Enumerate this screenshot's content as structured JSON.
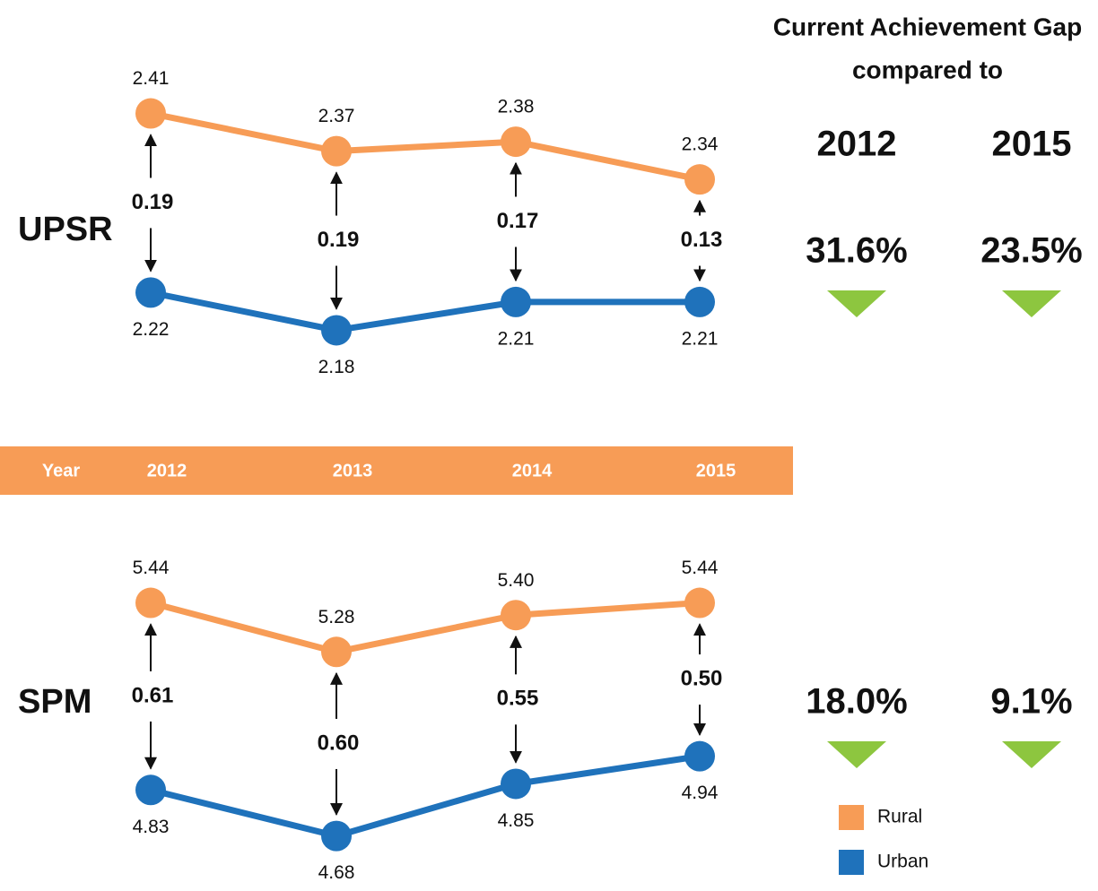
{
  "chart_data": [
    {
      "type": "line",
      "title": "UPSR",
      "ylim": [
        2.15,
        2.44
      ],
      "series": [
        {
          "name": "Rural",
          "color": "#f79c56",
          "values": [
            2.41,
            2.37,
            2.38,
            2.34
          ],
          "value_labels": [
            "2.41",
            "2.37",
            "2.38",
            "2.34"
          ]
        },
        {
          "name": "Urban",
          "color": "#1f72bb",
          "values": [
            2.22,
            2.18,
            2.21,
            2.21
          ],
          "value_labels": [
            "2.22",
            "2.18",
            "2.21",
            "2.21"
          ]
        }
      ],
      "gaps": [
        0.19,
        0.19,
        0.17,
        0.13
      ],
      "gap_labels": [
        "0.19",
        "0.19",
        "0.17",
        "0.13"
      ]
    },
    {
      "type": "line",
      "title": "SPM",
      "ylim": [
        4.6,
        5.5
      ],
      "series": [
        {
          "name": "Rural",
          "color": "#f79c56",
          "values": [
            5.44,
            5.28,
            5.4,
            5.44
          ],
          "value_labels": [
            "5.44",
            "5.28",
            "5.40",
            "5.44"
          ]
        },
        {
          "name": "Urban",
          "color": "#1f72bb",
          "values": [
            4.83,
            4.68,
            4.85,
            4.94
          ],
          "value_labels": [
            "4.83",
            "4.68",
            "4.85",
            "4.94"
          ]
        }
      ],
      "gaps": [
        0.61,
        0.6,
        0.55,
        0.5
      ],
      "gap_labels": [
        "0.61",
        "0.60",
        "0.55",
        "0.50"
      ]
    }
  ],
  "year_band": {
    "label": "Year",
    "categories": [
      "2012",
      "2013",
      "2014",
      "2015"
    ],
    "color": "#f79c56"
  },
  "summary": {
    "title": [
      "Current Achievement Gap",
      "compared to"
    ],
    "columns": [
      "2012",
      "2015"
    ],
    "marker_color": "#8dc63f",
    "rows": [
      {
        "values": [
          31.6,
          23.5
        ],
        "value_labels": [
          "31.6%",
          "23.5%"
        ]
      },
      {
        "values": [
          18.0,
          9.1
        ],
        "value_labels": [
          "18.0%",
          "9.1%"
        ]
      }
    ]
  }
}
